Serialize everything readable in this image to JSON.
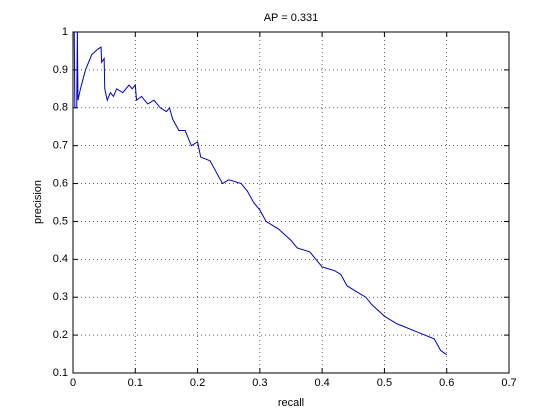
{
  "chart_data": {
    "type": "line",
    "title": "AP = 0.331",
    "xlabel": "recall",
    "ylabel": "precision",
    "x": [
      0.002,
      0.003,
      0.006,
      0.007,
      0.008,
      0.012,
      0.02,
      0.03,
      0.04,
      0.045,
      0.046,
      0.05,
      0.051,
      0.055,
      0.06,
      0.065,
      0.07,
      0.08,
      0.09,
      0.095,
      0.1,
      0.102,
      0.11,
      0.12,
      0.13,
      0.14,
      0.15,
      0.155,
      0.16,
      0.17,
      0.18,
      0.19,
      0.2,
      0.205,
      0.22,
      0.23,
      0.24,
      0.25,
      0.27,
      0.28,
      0.29,
      0.3,
      0.31,
      0.33,
      0.35,
      0.36,
      0.38,
      0.39,
      0.4,
      0.42,
      0.43,
      0.44,
      0.45,
      0.47,
      0.48,
      0.5,
      0.52,
      0.55,
      0.58,
      0.59,
      0.6
    ],
    "values": [
      1.0,
      0.8,
      0.8,
      1.0,
      0.82,
      0.85,
      0.9,
      0.94,
      0.955,
      0.96,
      0.92,
      0.93,
      0.85,
      0.82,
      0.84,
      0.83,
      0.85,
      0.84,
      0.86,
      0.85,
      0.86,
      0.82,
      0.83,
      0.81,
      0.82,
      0.8,
      0.79,
      0.8,
      0.77,
      0.74,
      0.74,
      0.7,
      0.71,
      0.67,
      0.66,
      0.63,
      0.6,
      0.61,
      0.6,
      0.58,
      0.55,
      0.53,
      0.5,
      0.48,
      0.45,
      0.43,
      0.42,
      0.4,
      0.38,
      0.37,
      0.36,
      0.33,
      0.32,
      0.3,
      0.28,
      0.25,
      0.23,
      0.21,
      0.19,
      0.16,
      0.148
    ],
    "color": "#0000c0",
    "xlim": [
      0,
      0.7
    ],
    "xticks": [
      0,
      0.1,
      0.2,
      0.3,
      0.4,
      0.5,
      0.6,
      0.7
    ],
    "ylim": [
      0.1,
      1
    ],
    "yticks": [
      0.1,
      0.2,
      0.3,
      0.4,
      0.5,
      0.6,
      0.7,
      0.8,
      0.9,
      1
    ],
    "grid": true
  }
}
